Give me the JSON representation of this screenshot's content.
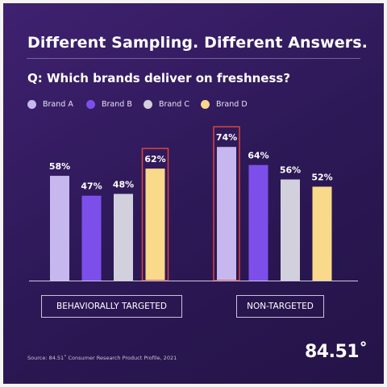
{
  "header": {
    "title": "Different Sampling. Different Answers.",
    "question": "Q: Which brands deliver on freshness?"
  },
  "colors": {
    "background": "#2c1855",
    "brand_a": "#c6b8ee",
    "brand_b": "#7d4fea",
    "brand_c": "#d3d0dd",
    "brand_d": "#f9d98a",
    "highlight_outline": "#d8453e"
  },
  "chart_data": {
    "type": "bar",
    "categories": [
      "BEHAVIORALLY TARGETED",
      "NON-TARGETED"
    ],
    "series": [
      {
        "name": "Brand A",
        "values": [
          58,
          74
        ],
        "labels": [
          "58%",
          "74%"
        ],
        "color": "#c6b8ee"
      },
      {
        "name": "Brand B",
        "values": [
          47,
          64
        ],
        "labels": [
          "47%",
          "64%"
        ],
        "color": "#7d4fea"
      },
      {
        "name": "Brand C",
        "values": [
          48,
          56
        ],
        "labels": [
          "48%",
          "56%"
        ],
        "color": "#d3d0dd"
      },
      {
        "name": "Brand D",
        "values": [
          62,
          52
        ],
        "labels": [
          "62%",
          "52%"
        ],
        "color": "#f9d98a"
      }
    ],
    "highlighted": [
      {
        "series": "Brand D",
        "category": "BEHAVIORALLY TARGETED"
      },
      {
        "series": "Brand A",
        "category": "NON-TARGETED"
      }
    ],
    "ylim": [
      0,
      100
    ],
    "legend_position": "top-left",
    "grid": false
  },
  "footer": {
    "source": "Source: 84.51˚ Consumer Research Product Profile, 2021",
    "logo_text": "84.51˚"
  }
}
